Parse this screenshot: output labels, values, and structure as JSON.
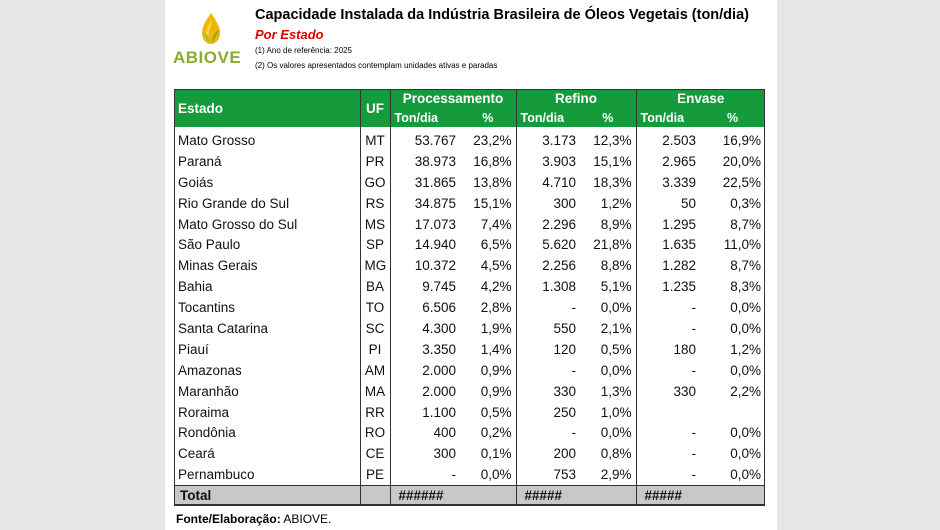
{
  "header": {
    "logo_text": "ABIOVE",
    "title": "Capacidade Instalada da Indústria Brasileira de Óleos Vegetais (ton/dia)",
    "subtitle": "Por Estado",
    "note1": "(1) Ano de referência: 2025",
    "note2": "(2) Os valores apresentados contemplam unidades ativas e paradas"
  },
  "colors": {
    "header_green": "#169b3c",
    "brand_green": "#8cab2e",
    "subtitle_red": "#e00000",
    "total_gray": "#c8c8c8"
  },
  "table": {
    "col_estado": "Estado",
    "col_uf": "UF",
    "group_processamento": "Processamento",
    "group_refino": "Refino",
    "group_envase": "Envase",
    "sub_ton": "Ton/dia",
    "sub_pct": "%",
    "rows": [
      {
        "estado": "Mato Grosso",
        "uf": "MT",
        "p_ton": "53.767",
        "p_pct": "23,2%",
        "r_ton": "3.173",
        "r_pct": "12,3%",
        "e_ton": "2.503",
        "e_pct": "16,9%"
      },
      {
        "estado": "Paraná",
        "uf": "PR",
        "p_ton": "38.973",
        "p_pct": "16,8%",
        "r_ton": "3.903",
        "r_pct": "15,1%",
        "e_ton": "2.965",
        "e_pct": "20,0%"
      },
      {
        "estado": "Goiás",
        "uf": "GO",
        "p_ton": "31.865",
        "p_pct": "13,8%",
        "r_ton": "4.710",
        "r_pct": "18,3%",
        "e_ton": "3.339",
        "e_pct": "22,5%"
      },
      {
        "estado": "Rio Grande do Sul",
        "uf": "RS",
        "p_ton": "34.875",
        "p_pct": "15,1%",
        "r_ton": "300",
        "r_pct": "1,2%",
        "e_ton": "50",
        "e_pct": "0,3%"
      },
      {
        "estado": "Mato Grosso do Sul",
        "uf": "MS",
        "p_ton": "17.073",
        "p_pct": "7,4%",
        "r_ton": "2.296",
        "r_pct": "8,9%",
        "e_ton": "1.295",
        "e_pct": "8,7%"
      },
      {
        "estado": "São Paulo",
        "uf": "SP",
        "p_ton": "14.940",
        "p_pct": "6,5%",
        "r_ton": "5.620",
        "r_pct": "21,8%",
        "e_ton": "1.635",
        "e_pct": "11,0%"
      },
      {
        "estado": "Minas Gerais",
        "uf": "MG",
        "p_ton": "10.372",
        "p_pct": "4,5%",
        "r_ton": "2.256",
        "r_pct": "8,8%",
        "e_ton": "1.282",
        "e_pct": "8,7%"
      },
      {
        "estado": "Bahia",
        "uf": "BA",
        "p_ton": "9.745",
        "p_pct": "4,2%",
        "r_ton": "1.308",
        "r_pct": "5,1%",
        "e_ton": "1.235",
        "e_pct": "8,3%"
      },
      {
        "estado": "Tocantins",
        "uf": "TO",
        "p_ton": "6.506",
        "p_pct": "2,8%",
        "r_ton": "-",
        "r_pct": "0,0%",
        "e_ton": "-",
        "e_pct": "0,0%"
      },
      {
        "estado": "Santa Catarina",
        "uf": "SC",
        "p_ton": "4.300",
        "p_pct": "1,9%",
        "r_ton": "550",
        "r_pct": "2,1%",
        "e_ton": "-",
        "e_pct": "0,0%"
      },
      {
        "estado": "Piauí",
        "uf": "PI",
        "p_ton": "3.350",
        "p_pct": "1,4%",
        "r_ton": "120",
        "r_pct": "0,5%",
        "e_ton": "180",
        "e_pct": "1,2%"
      },
      {
        "estado": "Amazonas",
        "uf": "AM",
        "p_ton": "2.000",
        "p_pct": "0,9%",
        "r_ton": "-",
        "r_pct": "0,0%",
        "e_ton": "-",
        "e_pct": "0,0%"
      },
      {
        "estado": "Maranhão",
        "uf": "MA",
        "p_ton": "2.000",
        "p_pct": "0,9%",
        "r_ton": "330",
        "r_pct": "1,3%",
        "e_ton": "330",
        "e_pct": "2,2%"
      },
      {
        "estado": "Roraima",
        "uf": "RR",
        "p_ton": "1.100",
        "p_pct": "0,5%",
        "r_ton": "250",
        "r_pct": "1,0%",
        "e_ton": "",
        "e_pct": ""
      },
      {
        "estado": "Rondônia",
        "uf": "RO",
        "p_ton": "400",
        "p_pct": "0,2%",
        "r_ton": "-",
        "r_pct": "0,0%",
        "e_ton": "-",
        "e_pct": "0,0%"
      },
      {
        "estado": "Ceará",
        "uf": "CE",
        "p_ton": "300",
        "p_pct": "0,1%",
        "r_ton": "200",
        "r_pct": "0,8%",
        "e_ton": "-",
        "e_pct": "0,0%"
      },
      {
        "estado": "Pernambuco",
        "uf": "PE",
        "p_ton": "-",
        "p_pct": "0,0%",
        "r_ton": "753",
        "r_pct": "2,9%",
        "e_ton": "-",
        "e_pct": "0,0%"
      }
    ],
    "total": {
      "label": "Total",
      "p_ton": "######",
      "r_ton": "#####",
      "e_ton": "#####"
    }
  },
  "source": {
    "label": "Fonte/Elaboração:",
    "value": " ABIOVE."
  }
}
